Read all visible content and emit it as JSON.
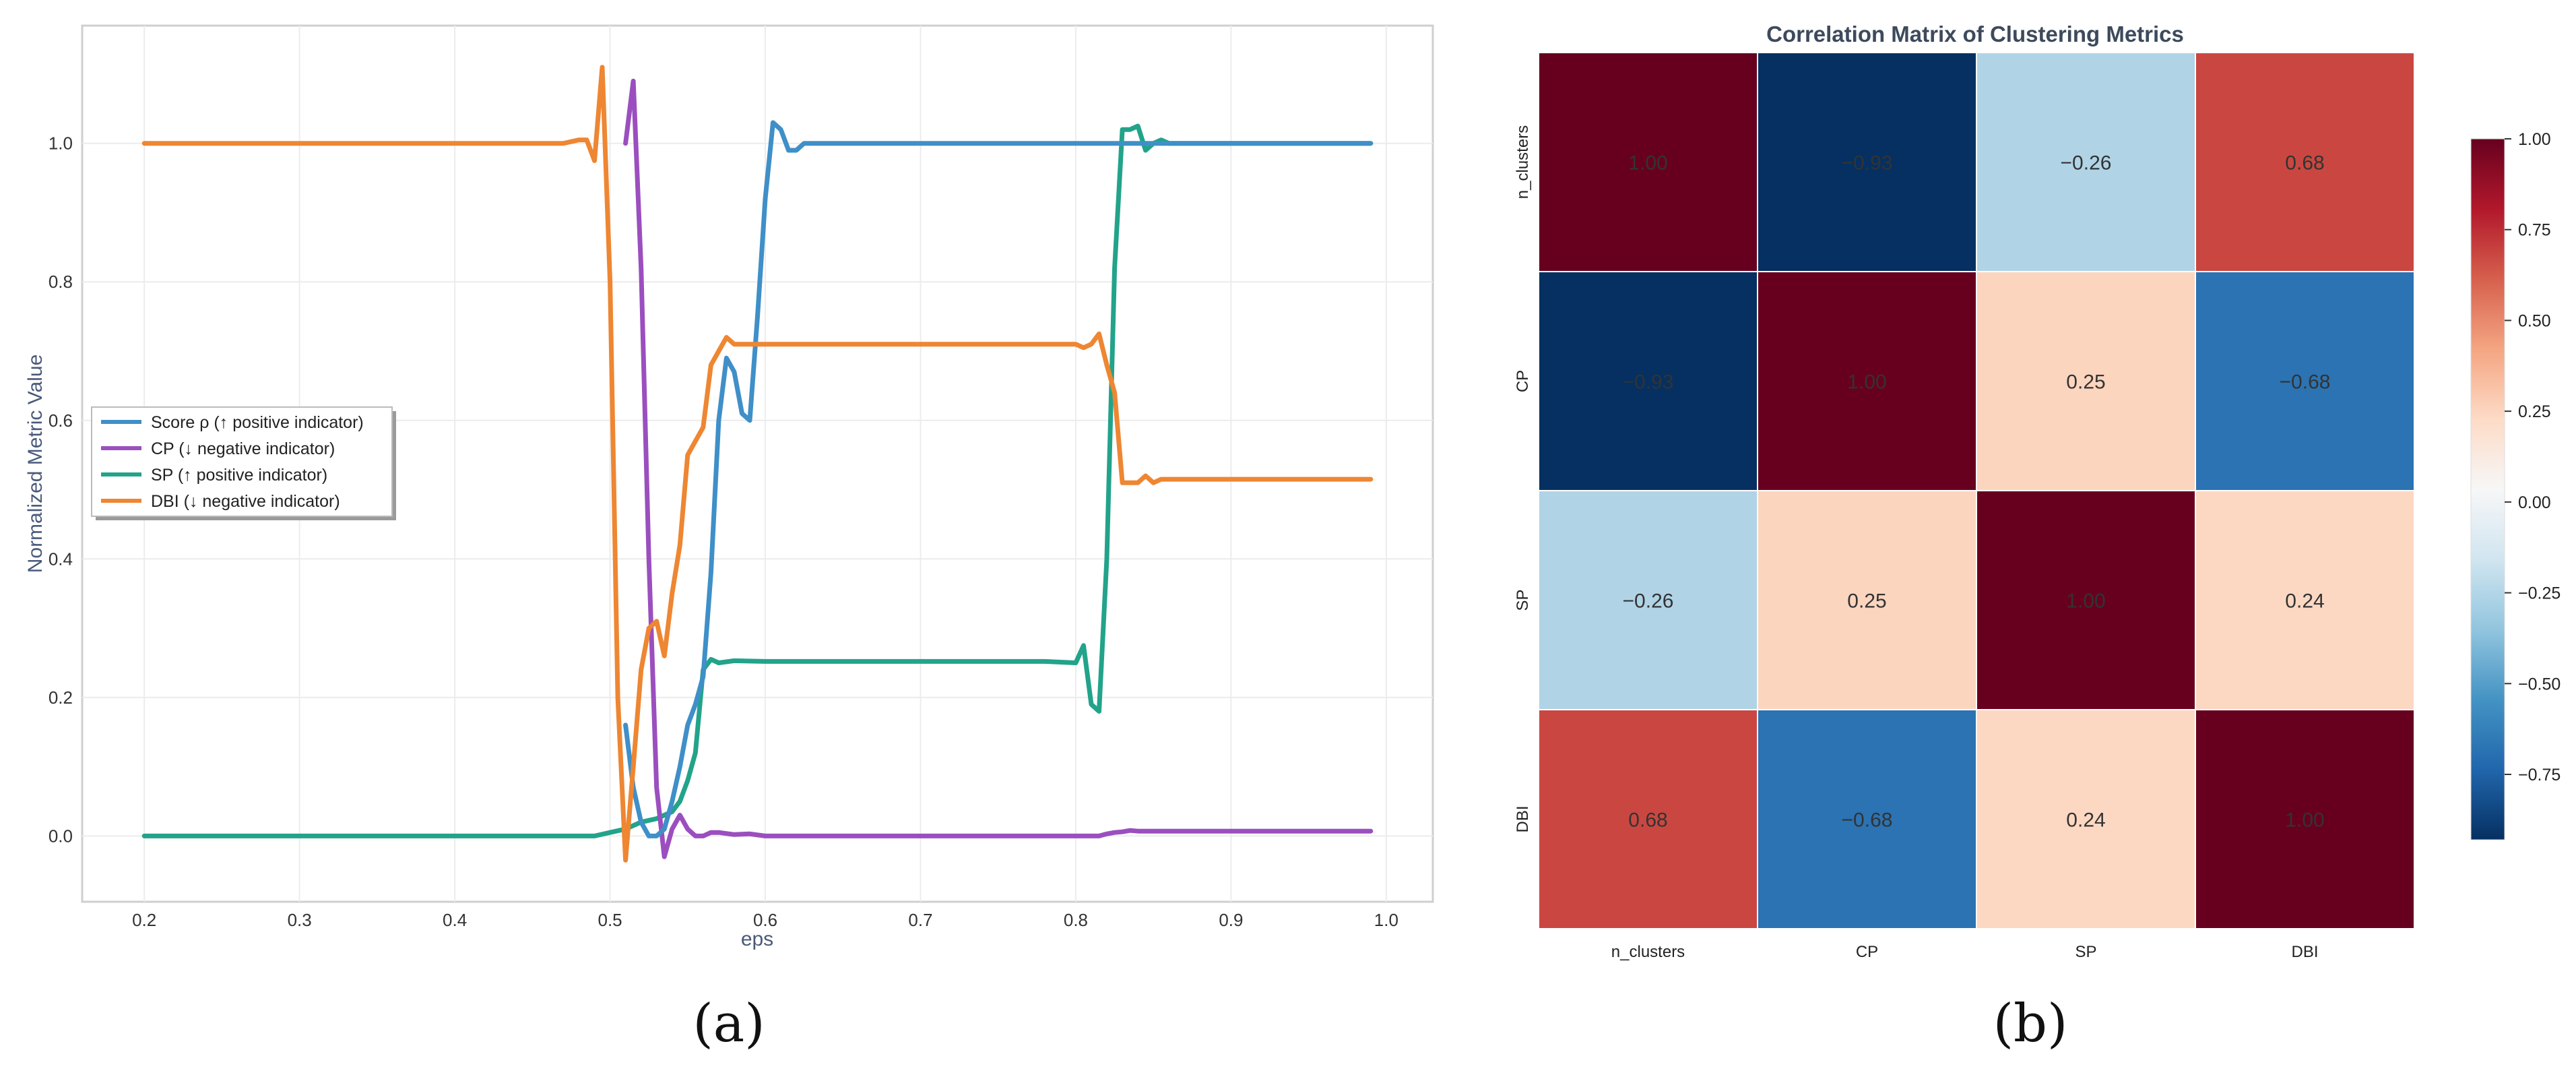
{
  "panel_labels": [
    "(a)",
    "(b)"
  ],
  "colors": {
    "score": "#3f8fc8",
    "cp": "#9b4fbf",
    "sp": "#22a38a",
    "dbi": "#ee8632"
  },
  "chart_data": [
    {
      "type": "line",
      "xlabel": "eps",
      "ylabel": "Normalized Metric Value",
      "xlim": [
        0.16,
        1.03
      ],
      "ylim": [
        -0.095,
        1.17
      ],
      "xticks": [
        "0.2",
        "0.3",
        "0.4",
        "0.5",
        "0.6",
        "0.7",
        "0.8",
        "0.9",
        "1.0"
      ],
      "yticks": [
        "0.0",
        "0.2",
        "0.4",
        "0.6",
        "0.8",
        "1.0"
      ],
      "grid": true,
      "legend_position": "center-left",
      "series": [
        {
          "name": "Score ρ (↑ positive indicator)",
          "color_key": "score",
          "x": [
            0.51,
            0.515,
            0.52,
            0.525,
            0.53,
            0.535,
            0.54,
            0.545,
            0.55,
            0.555,
            0.56,
            0.565,
            0.57,
            0.575,
            0.58,
            0.585,
            0.59,
            0.595,
            0.6,
            0.605,
            0.61,
            0.615,
            0.62,
            0.625,
            0.63,
            0.635,
            0.64,
            0.7,
            0.8,
            0.85,
            0.9,
            0.99
          ],
          "y": [
            0.16,
            0.07,
            0.02,
            0.0,
            0.0,
            0.01,
            0.05,
            0.1,
            0.16,
            0.19,
            0.23,
            0.38,
            0.6,
            0.69,
            0.67,
            0.61,
            0.6,
            0.75,
            0.92,
            1.03,
            1.02,
            0.99,
            0.99,
            1.0,
            1.0,
            1.0,
            1.0,
            1.0,
            1.0,
            1.0,
            1.0,
            1.0
          ]
        },
        {
          "name": "CP (↓ negative indicator)",
          "color_key": "cp",
          "x": [
            0.51,
            0.515,
            0.52,
            0.525,
            0.53,
            0.535,
            0.54,
            0.545,
            0.55,
            0.555,
            0.56,
            0.565,
            0.57,
            0.58,
            0.59,
            0.6,
            0.7,
            0.8,
            0.815,
            0.82,
            0.825,
            0.83,
            0.835,
            0.84,
            0.9,
            0.99
          ],
          "y": [
            1.0,
            1.09,
            0.82,
            0.4,
            0.07,
            -0.03,
            0.01,
            0.03,
            0.01,
            0.0,
            0.0,
            0.005,
            0.005,
            0.002,
            0.003,
            0.0,
            0.0,
            0.0,
            0.0,
            0.003,
            0.005,
            0.006,
            0.008,
            0.007,
            0.007,
            0.007
          ]
        },
        {
          "name": "SP (↑ positive indicator)",
          "color_key": "sp",
          "x": [
            0.2,
            0.3,
            0.4,
            0.49,
            0.5,
            0.51,
            0.52,
            0.53,
            0.535,
            0.54,
            0.545,
            0.55,
            0.555,
            0.56,
            0.565,
            0.57,
            0.58,
            0.6,
            0.7,
            0.78,
            0.8,
            0.805,
            0.81,
            0.815,
            0.82,
            0.825,
            0.83,
            0.835,
            0.84,
            0.845,
            0.85,
            0.855,
            0.86,
            0.87,
            0.9,
            0.99
          ],
          "y": [
            0.0,
            0.0,
            0.0,
            0.0,
            0.005,
            0.01,
            0.02,
            0.025,
            0.03,
            0.035,
            0.05,
            0.08,
            0.12,
            0.24,
            0.255,
            0.25,
            0.253,
            0.252,
            0.252,
            0.252,
            0.25,
            0.275,
            0.19,
            0.18,
            0.4,
            0.82,
            1.02,
            1.02,
            1.025,
            0.99,
            1.0,
            1.005,
            1.0,
            1.0,
            1.0,
            1.0
          ]
        },
        {
          "name": "DBI (↓ negative indicator)",
          "color_key": "dbi",
          "x": [
            0.2,
            0.3,
            0.4,
            0.45,
            0.46,
            0.47,
            0.48,
            0.485,
            0.49,
            0.495,
            0.5,
            0.505,
            0.51,
            0.515,
            0.52,
            0.525,
            0.53,
            0.535,
            0.54,
            0.545,
            0.55,
            0.555,
            0.56,
            0.565,
            0.57,
            0.575,
            0.58,
            0.59,
            0.6,
            0.7,
            0.78,
            0.8,
            0.805,
            0.81,
            0.815,
            0.82,
            0.825,
            0.83,
            0.835,
            0.84,
            0.845,
            0.85,
            0.855,
            0.86,
            0.9,
            0.99
          ],
          "y": [
            1.0,
            1.0,
            1.0,
            1.0,
            1.0,
            1.0,
            1.005,
            1.005,
            0.975,
            1.11,
            0.8,
            0.2,
            -0.035,
            0.1,
            0.24,
            0.3,
            0.31,
            0.26,
            0.35,
            0.42,
            0.55,
            0.57,
            0.59,
            0.68,
            0.7,
            0.72,
            0.71,
            0.71,
            0.71,
            0.71,
            0.71,
            0.71,
            0.705,
            0.71,
            0.725,
            0.68,
            0.64,
            0.51,
            0.51,
            0.51,
            0.52,
            0.51,
            0.515,
            0.515,
            0.515,
            0.515
          ]
        }
      ]
    },
    {
      "type": "heatmap",
      "title": "Correlation Matrix of Clustering Metrics",
      "rows": [
        "n_clusters",
        "CP",
        "SP",
        "DBI"
      ],
      "cols": [
        "n_clusters",
        "CP",
        "SP",
        "DBI"
      ],
      "values": [
        [
          1.0,
          -0.93,
          -0.26,
          0.68
        ],
        [
          -0.93,
          1.0,
          0.25,
          -0.68
        ],
        [
          -0.26,
          0.25,
          1.0,
          0.24
        ],
        [
          0.68,
          -0.68,
          0.24,
          1.0
        ]
      ],
      "labels": [
        [
          "1.00",
          "−0.93",
          "−0.26",
          "0.68"
        ],
        [
          "−0.93",
          "1.00",
          "0.25",
          "−0.68"
        ],
        [
          "−0.26",
          "0.25",
          "1.00",
          "0.24"
        ],
        [
          "0.68",
          "−0.68",
          "0.24",
          "1.00"
        ]
      ],
      "colormap": "RdBu_r",
      "vmin": -0.93,
      "vmax": 1.0,
      "colorbar_ticks": [
        "1.00",
        "0.75",
        "0.50",
        "0.25",
        "0.00",
        "−0.25",
        "−0.50",
        "−0.75"
      ],
      "colorbar_tick_values": [
        1.0,
        0.75,
        0.5,
        0.25,
        0.0,
        -0.25,
        -0.5,
        -0.75
      ]
    }
  ]
}
